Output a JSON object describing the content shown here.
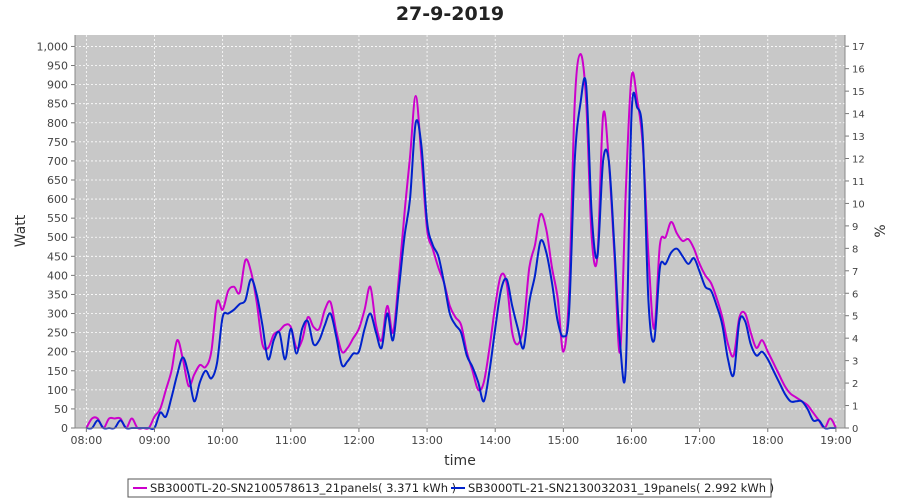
{
  "chart_data": {
    "type": "line",
    "title": "27-9-2019",
    "xlabel": "time",
    "ylabel": "Watt",
    "ylabel_right": "%",
    "xlim": [
      "07:50",
      "19:08"
    ],
    "ylim": [
      0,
      1030
    ],
    "ylim_right": [
      0,
      17.5
    ],
    "grid": true,
    "legend_position": "bottom",
    "x_ticks": [
      "08:00",
      "09:00",
      "10:00",
      "11:00",
      "12:00",
      "13:00",
      "14:00",
      "15:00",
      "16:00",
      "17:00",
      "18:00",
      "19:00"
    ],
    "y_ticks": [
      "0",
      "50",
      "100",
      "150",
      "200",
      "250",
      "300",
      "350",
      "400",
      "450",
      "500",
      "550",
      "600",
      "650",
      "700",
      "750",
      "800",
      "850",
      "900",
      "950",
      "1,000"
    ],
    "y_ticks_right": [
      "0",
      "1",
      "2",
      "3",
      "4",
      "5",
      "6",
      "7",
      "8",
      "9",
      "10",
      "11",
      "12",
      "13",
      "14",
      "15",
      "16",
      "17"
    ],
    "series": [
      {
        "name": "SB3000TL-20-SN2100578613_21panels( 3.371 kWh )",
        "color": "#cc00cc",
        "points": [
          [
            "08:00",
            0
          ],
          [
            "08:05",
            25
          ],
          [
            "08:10",
            25
          ],
          [
            "08:15",
            0
          ],
          [
            "08:20",
            25
          ],
          [
            "08:25",
            25
          ],
          [
            "08:30",
            25
          ],
          [
            "08:35",
            0
          ],
          [
            "08:40",
            25
          ],
          [
            "08:45",
            0
          ],
          [
            "08:50",
            0
          ],
          [
            "08:55",
            0
          ],
          [
            "09:00",
            30
          ],
          [
            "09:05",
            50
          ],
          [
            "09:10",
            100
          ],
          [
            "09:15",
            150
          ],
          [
            "09:20",
            230
          ],
          [
            "09:25",
            180
          ],
          [
            "09:30",
            110
          ],
          [
            "09:35",
            140
          ],
          [
            "09:40",
            165
          ],
          [
            "09:45",
            160
          ],
          [
            "09:50",
            200
          ],
          [
            "09:55",
            330
          ],
          [
            "10:00",
            310
          ],
          [
            "10:05",
            360
          ],
          [
            "10:10",
            370
          ],
          [
            "10:15",
            355
          ],
          [
            "10:20",
            440
          ],
          [
            "10:25",
            410
          ],
          [
            "10:30",
            330
          ],
          [
            "10:35",
            220
          ],
          [
            "10:40",
            210
          ],
          [
            "10:45",
            245
          ],
          [
            "10:50",
            255
          ],
          [
            "10:55",
            270
          ],
          [
            "11:00",
            265
          ],
          [
            "11:05",
            210
          ],
          [
            "11:10",
            230
          ],
          [
            "11:15",
            290
          ],
          [
            "11:20",
            265
          ],
          [
            "11:25",
            260
          ],
          [
            "11:30",
            310
          ],
          [
            "11:35",
            330
          ],
          [
            "11:40",
            255
          ],
          [
            "11:45",
            200
          ],
          [
            "11:50",
            210
          ],
          [
            "11:55",
            235
          ],
          [
            "12:00",
            260
          ],
          [
            "12:05",
            310
          ],
          [
            "12:10",
            370
          ],
          [
            "12:15",
            270
          ],
          [
            "12:20",
            230
          ],
          [
            "12:25",
            320
          ],
          [
            "12:30",
            250
          ],
          [
            "12:35",
            390
          ],
          [
            "12:40",
            560
          ],
          [
            "12:45",
            710
          ],
          [
            "12:50",
            870
          ],
          [
            "12:55",
            710
          ],
          [
            "13:00",
            520
          ],
          [
            "13:05",
            470
          ],
          [
            "13:10",
            420
          ],
          [
            "13:15",
            380
          ],
          [
            "13:20",
            320
          ],
          [
            "13:25",
            290
          ],
          [
            "13:30",
            270
          ],
          [
            "13:35",
            200
          ],
          [
            "13:40",
            150
          ],
          [
            "13:45",
            100
          ],
          [
            "13:50",
            120
          ],
          [
            "13:55",
            210
          ],
          [
            "14:00",
            320
          ],
          [
            "14:05",
            400
          ],
          [
            "14:10",
            380
          ],
          [
            "14:15",
            250
          ],
          [
            "14:20",
            220
          ],
          [
            "14:25",
            270
          ],
          [
            "14:30",
            420
          ],
          [
            "14:35",
            480
          ],
          [
            "14:40",
            560
          ],
          [
            "14:45",
            520
          ],
          [
            "14:50",
            420
          ],
          [
            "14:55",
            340
          ],
          [
            "15:00",
            200
          ],
          [
            "15:05",
            350
          ],
          [
            "15:10",
            850
          ],
          [
            "15:15",
            980
          ],
          [
            "15:20",
            860
          ],
          [
            "15:25",
            500
          ],
          [
            "15:30",
            450
          ],
          [
            "15:35",
            820
          ],
          [
            "15:40",
            700
          ],
          [
            "15:45",
            450
          ],
          [
            "15:50",
            200
          ],
          [
            "15:55",
            620
          ],
          [
            "16:00",
            920
          ],
          [
            "16:05",
            860
          ],
          [
            "16:10",
            740
          ],
          [
            "16:15",
            450
          ],
          [
            "16:20",
            260
          ],
          [
            "16:25",
            480
          ],
          [
            "16:30",
            500
          ],
          [
            "16:35",
            540
          ],
          [
            "16:40",
            510
          ],
          [
            "16:45",
            490
          ],
          [
            "16:50",
            495
          ],
          [
            "16:55",
            470
          ],
          [
            "17:00",
            430
          ],
          [
            "17:05",
            400
          ],
          [
            "17:10",
            380
          ],
          [
            "17:15",
            340
          ],
          [
            "17:20",
            290
          ],
          [
            "17:25",
            220
          ],
          [
            "17:30",
            190
          ],
          [
            "17:35",
            290
          ],
          [
            "17:40",
            300
          ],
          [
            "17:45",
            250
          ],
          [
            "17:50",
            210
          ],
          [
            "17:55",
            230
          ],
          [
            "18:00",
            200
          ],
          [
            "18:05",
            170
          ],
          [
            "18:10",
            140
          ],
          [
            "18:15",
            110
          ],
          [
            "18:20",
            90
          ],
          [
            "18:25",
            80
          ],
          [
            "18:30",
            70
          ],
          [
            "18:35",
            60
          ],
          [
            "18:40",
            40
          ],
          [
            "18:45",
            20
          ],
          [
            "18:50",
            0
          ],
          [
            "18:55",
            25
          ],
          [
            "19:00",
            0
          ]
        ]
      },
      {
        "name": "SB3000TL-21-SN2130032031_19panels( 2.992 kWh )",
        "color": "#0022cc",
        "points": [
          [
            "08:00",
            0
          ],
          [
            "08:05",
            0
          ],
          [
            "08:10",
            20
          ],
          [
            "08:15",
            0
          ],
          [
            "08:20",
            0
          ],
          [
            "08:25",
            0
          ],
          [
            "08:30",
            20
          ],
          [
            "08:35",
            0
          ],
          [
            "08:40",
            0
          ],
          [
            "08:45",
            0
          ],
          [
            "08:50",
            0
          ],
          [
            "08:55",
            0
          ],
          [
            "09:00",
            0
          ],
          [
            "09:05",
            40
          ],
          [
            "09:10",
            30
          ],
          [
            "09:15",
            80
          ],
          [
            "09:20",
            140
          ],
          [
            "09:25",
            185
          ],
          [
            "09:30",
            140
          ],
          [
            "09:35",
            70
          ],
          [
            "09:40",
            120
          ],
          [
            "09:45",
            150
          ],
          [
            "09:50",
            130
          ],
          [
            "09:55",
            170
          ],
          [
            "10:00",
            290
          ],
          [
            "10:05",
            300
          ],
          [
            "10:10",
            310
          ],
          [
            "10:15",
            325
          ],
          [
            "10:20",
            335
          ],
          [
            "10:25",
            390
          ],
          [
            "10:30",
            350
          ],
          [
            "10:35",
            270
          ],
          [
            "10:40",
            180
          ],
          [
            "10:45",
            230
          ],
          [
            "10:50",
            250
          ],
          [
            "10:55",
            180
          ],
          [
            "11:00",
            260
          ],
          [
            "11:05",
            195
          ],
          [
            "11:10",
            260
          ],
          [
            "11:15",
            280
          ],
          [
            "11:20",
            220
          ],
          [
            "11:25",
            230
          ],
          [
            "11:30",
            270
          ],
          [
            "11:35",
            300
          ],
          [
            "11:40",
            240
          ],
          [
            "11:45",
            165
          ],
          [
            "11:50",
            175
          ],
          [
            "11:55",
            195
          ],
          [
            "12:00",
            200
          ],
          [
            "12:05",
            260
          ],
          [
            "12:10",
            300
          ],
          [
            "12:15",
            250
          ],
          [
            "12:20",
            210
          ],
          [
            "12:25",
            300
          ],
          [
            "12:30",
            230
          ],
          [
            "12:35",
            360
          ],
          [
            "12:40",
            500
          ],
          [
            "12:45",
            600
          ],
          [
            "12:50",
            800
          ],
          [
            "12:55",
            740
          ],
          [
            "13:00",
            540
          ],
          [
            "13:05",
            480
          ],
          [
            "13:10",
            450
          ],
          [
            "13:15",
            380
          ],
          [
            "13:20",
            300
          ],
          [
            "13:25",
            270
          ],
          [
            "13:30",
            250
          ],
          [
            "13:35",
            190
          ],
          [
            "13:40",
            160
          ],
          [
            "13:45",
            120
          ],
          [
            "13:50",
            70
          ],
          [
            "13:55",
            150
          ],
          [
            "14:00",
            260
          ],
          [
            "14:05",
            360
          ],
          [
            "14:10",
            390
          ],
          [
            "14:15",
            320
          ],
          [
            "14:20",
            260
          ],
          [
            "14:25",
            210
          ],
          [
            "14:30",
            330
          ],
          [
            "14:35",
            400
          ],
          [
            "14:40",
            490
          ],
          [
            "14:45",
            460
          ],
          [
            "14:50",
            380
          ],
          [
            "14:55",
            280
          ],
          [
            "15:00",
            240
          ],
          [
            "15:05",
            300
          ],
          [
            "15:10",
            700
          ],
          [
            "15:15",
            850
          ],
          [
            "15:20",
            900
          ],
          [
            "15:25",
            560
          ],
          [
            "15:30",
            450
          ],
          [
            "15:35",
            700
          ],
          [
            "15:40",
            700
          ],
          [
            "15:45",
            470
          ],
          [
            "15:50",
            220
          ],
          [
            "15:55",
            160
          ],
          [
            "16:00",
            820
          ],
          [
            "16:05",
            840
          ],
          [
            "16:10",
            760
          ],
          [
            "16:15",
            330
          ],
          [
            "16:20",
            230
          ],
          [
            "16:25",
            420
          ],
          [
            "16:30",
            430
          ],
          [
            "16:35",
            460
          ],
          [
            "16:40",
            470
          ],
          [
            "16:45",
            450
          ],
          [
            "16:50",
            430
          ],
          [
            "16:55",
            445
          ],
          [
            "17:00",
            410
          ],
          [
            "17:05",
            370
          ],
          [
            "17:10",
            360
          ],
          [
            "17:15",
            320
          ],
          [
            "17:20",
            270
          ],
          [
            "17:25",
            180
          ],
          [
            "17:30",
            140
          ],
          [
            "17:35",
            280
          ],
          [
            "17:40",
            280
          ],
          [
            "17:45",
            220
          ],
          [
            "17:50",
            190
          ],
          [
            "17:55",
            200
          ],
          [
            "18:00",
            180
          ],
          [
            "18:05",
            150
          ],
          [
            "18:10",
            120
          ],
          [
            "18:15",
            90
          ],
          [
            "18:20",
            70
          ],
          [
            "18:25",
            70
          ],
          [
            "18:30",
            70
          ],
          [
            "18:35",
            50
          ],
          [
            "18:40",
            20
          ],
          [
            "18:45",
            20
          ],
          [
            "18:50",
            0
          ],
          [
            "18:55",
            0
          ],
          [
            "19:00",
            0
          ]
        ]
      }
    ]
  }
}
